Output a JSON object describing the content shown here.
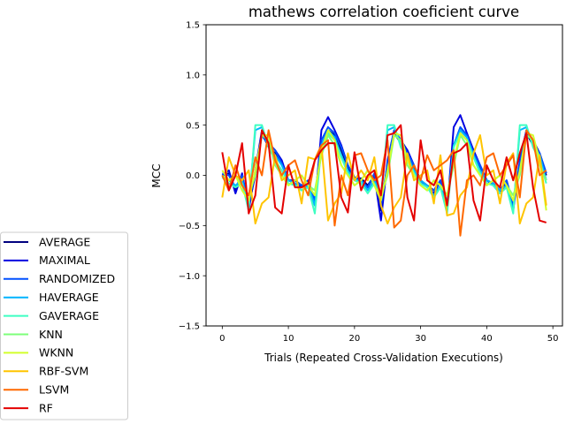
{
  "chart_data": {
    "type": "line",
    "title": "mathews correlation coeficient curve",
    "xlabel": "Trials (Repeated Cross-Validation Executions)",
    "ylabel": "MCC",
    "xlim": [
      -2.45,
      51.45
    ],
    "ylim": [
      -1.5,
      1.5
    ],
    "xticks": [
      0,
      10,
      20,
      30,
      40,
      50
    ],
    "yticks": [
      -1.5,
      -1.0,
      -0.5,
      0.0,
      0.5,
      1.0,
      1.5
    ],
    "xtick_labels": [
      "0",
      "10",
      "20",
      "30",
      "40",
      "50"
    ],
    "ytick_labels": [
      "−1.5",
      "−1.0",
      "−0.5",
      "0.0",
      "0.5",
      "1.0",
      "1.5"
    ],
    "grid": false,
    "legend_position": "outside-lower-left",
    "x": [
      0,
      1,
      2,
      3,
      4,
      5,
      6,
      7,
      8,
      9,
      10,
      11,
      12,
      13,
      14,
      15,
      16,
      17,
      18,
      19,
      20,
      21,
      22,
      23,
      24,
      25,
      26,
      27,
      28,
      29,
      30,
      31,
      32,
      33,
      34,
      35,
      36,
      37,
      38,
      39,
      40,
      41,
      42,
      43,
      44,
      45,
      46,
      47,
      48,
      49
    ],
    "series": [
      {
        "name": "AVERAGE",
        "color": "#00007f",
        "values": [
          0.0,
          0.02,
          -0.15,
          0.0,
          -0.3,
          0.0,
          0.42,
          0.28,
          0.22,
          0.12,
          -0.05,
          -0.05,
          -0.1,
          -0.05,
          -0.25,
          0.3,
          0.45,
          0.4,
          0.25,
          0.08,
          -0.03,
          -0.03,
          -0.1,
          0.0,
          -0.35,
          0.1,
          0.42,
          0.32,
          0.2,
          0.08,
          -0.05,
          -0.1,
          -0.15,
          -0.05,
          -0.3,
          0.3,
          0.45,
          0.38,
          0.2,
          0.08,
          -0.05,
          -0.08,
          -0.15,
          -0.05,
          -0.3,
          0.1,
          0.42,
          0.3,
          0.2,
          0.0
        ]
      },
      {
        "name": "MAXIMAL",
        "color": "#0000e0",
        "values": [
          0.0,
          0.05,
          -0.18,
          0.02,
          -0.35,
          0.05,
          0.45,
          0.32,
          0.25,
          0.15,
          -0.05,
          -0.08,
          -0.12,
          -0.08,
          -0.3,
          0.45,
          0.58,
          0.45,
          0.3,
          0.1,
          -0.02,
          -0.05,
          -0.12,
          0.0,
          -0.45,
          0.15,
          0.45,
          0.35,
          0.25,
          0.1,
          -0.05,
          -0.12,
          -0.18,
          -0.05,
          -0.35,
          0.48,
          0.6,
          0.42,
          0.25,
          0.1,
          -0.05,
          -0.1,
          -0.18,
          -0.08,
          -0.35,
          0.15,
          0.45,
          0.35,
          0.22,
          0.02
        ]
      },
      {
        "name": "RANDOMIZED",
        "color": "#0050ff",
        "values": [
          0.02,
          0.0,
          -0.12,
          0.0,
          -0.28,
          0.02,
          0.4,
          0.3,
          0.25,
          0.12,
          -0.05,
          -0.05,
          -0.1,
          -0.05,
          -0.25,
          0.35,
          0.48,
          0.42,
          0.28,
          0.1,
          -0.02,
          -0.05,
          -0.12,
          0.02,
          -0.3,
          0.12,
          0.45,
          0.35,
          0.22,
          0.1,
          -0.05,
          -0.12,
          -0.15,
          -0.05,
          -0.28,
          0.3,
          0.48,
          0.4,
          0.22,
          0.1,
          -0.05,
          -0.08,
          -0.15,
          -0.05,
          -0.3,
          0.12,
          0.45,
          0.32,
          0.22,
          0.02
        ]
      },
      {
        "name": "HAVERAGE",
        "color": "#00b4ff",
        "values": [
          0.0,
          -0.05,
          -0.1,
          -0.05,
          -0.3,
          0.45,
          0.48,
          0.3,
          0.2,
          0.1,
          -0.05,
          -0.08,
          -0.15,
          -0.1,
          -0.3,
          0.3,
          0.45,
          0.38,
          0.2,
          0.05,
          -0.05,
          -0.05,
          -0.15,
          -0.05,
          -0.2,
          0.45,
          0.48,
          0.3,
          0.2,
          0.05,
          -0.05,
          -0.1,
          -0.2,
          -0.1,
          -0.35,
          0.3,
          0.45,
          0.38,
          0.2,
          0.05,
          -0.05,
          -0.08,
          -0.15,
          -0.1,
          -0.35,
          0.45,
          0.48,
          0.3,
          0.2,
          -0.05
        ]
      },
      {
        "name": "GAVERAGE",
        "color": "#3dffc2",
        "values": [
          -0.02,
          -0.08,
          -0.12,
          -0.08,
          -0.35,
          0.5,
          0.5,
          0.28,
          0.15,
          0.05,
          -0.08,
          -0.1,
          -0.15,
          -0.12,
          -0.38,
          0.28,
          0.42,
          0.35,
          0.18,
          0.02,
          -0.05,
          -0.08,
          -0.18,
          -0.08,
          -0.25,
          0.5,
          0.5,
          0.28,
          0.18,
          0.02,
          -0.08,
          -0.12,
          -0.22,
          -0.12,
          -0.38,
          0.28,
          0.42,
          0.35,
          0.18,
          0.02,
          -0.08,
          -0.1,
          -0.18,
          -0.12,
          -0.38,
          0.5,
          0.5,
          0.28,
          0.15,
          -0.08
        ]
      },
      {
        "name": "KNN",
        "color": "#7dff7a",
        "values": [
          0.0,
          -0.05,
          0.0,
          -0.1,
          -0.2,
          0.0,
          0.4,
          0.35,
          0.1,
          0.0,
          -0.1,
          -0.05,
          0.0,
          -0.1,
          -0.15,
          0.2,
          0.4,
          0.3,
          0.1,
          0.0,
          -0.1,
          -0.05,
          0.05,
          -0.1,
          -0.2,
          0.0,
          0.4,
          0.35,
          0.1,
          0.0,
          -0.1,
          -0.15,
          -0.05,
          -0.1,
          -0.2,
          0.1,
          0.4,
          0.3,
          0.1,
          0.0,
          -0.1,
          -0.05,
          0.0,
          -0.1,
          -0.2,
          0.0,
          0.4,
          0.35,
          0.1,
          -0.05
        ]
      },
      {
        "name": "WKNN",
        "color": "#d2ff2b",
        "values": [
          0.05,
          -0.05,
          0.0,
          -0.15,
          -0.25,
          0.05,
          0.4,
          0.4,
          0.15,
          0.0,
          -0.1,
          -0.05,
          0.0,
          -0.1,
          -0.2,
          0.25,
          0.45,
          0.35,
          0.1,
          0.0,
          -0.1,
          -0.05,
          0.05,
          -0.1,
          -0.25,
          0.05,
          0.42,
          0.4,
          0.15,
          0.0,
          -0.1,
          -0.15,
          -0.05,
          -0.1,
          -0.2,
          0.15,
          0.42,
          0.35,
          0.1,
          0.0,
          -0.1,
          -0.05,
          0.0,
          -0.1,
          -0.25,
          0.05,
          0.42,
          0.4,
          0.15,
          -0.35
        ]
      },
      {
        "name": "RBF-SVM",
        "color": "#ffc400",
        "values": [
          -0.22,
          0.18,
          0.0,
          -0.05,
          0.05,
          -0.48,
          -0.28,
          -0.22,
          0.2,
          -0.05,
          0.0,
          0.05,
          -0.28,
          0.18,
          0.16,
          0.3,
          -0.45,
          -0.28,
          -0.18,
          0.22,
          -0.05,
          0.05,
          -0.05,
          0.18,
          -0.3,
          -0.48,
          -0.32,
          -0.22,
          0.22,
          -0.05,
          0.0,
          0.05,
          -0.28,
          0.2,
          -0.4,
          -0.38,
          -0.2,
          -0.12,
          0.22,
          0.4,
          0.0,
          0.05,
          -0.28,
          0.12,
          0.22,
          -0.48,
          -0.28,
          -0.22,
          0.2,
          -0.3
        ]
      },
      {
        "name": "LSVM",
        "color": "#ff6800",
        "values": [
          0.0,
          -0.15,
          0.1,
          -0.1,
          -0.2,
          0.18,
          0.0,
          0.45,
          0.15,
          0.0,
          0.1,
          0.15,
          -0.05,
          -0.2,
          0.15,
          0.3,
          0.35,
          -0.5,
          0.0,
          -0.2,
          0.2,
          0.22,
          0.05,
          -0.05,
          0.0,
          0.35,
          -0.52,
          -0.45,
          0.0,
          0.1,
          -0.05,
          0.2,
          0.05,
          0.1,
          0.15,
          0.25,
          -0.6,
          -0.05,
          0.0,
          -0.1,
          0.18,
          0.22,
          0.0,
          0.1,
          0.2,
          -0.22,
          0.45,
          0.35,
          0.0,
          0.05
        ]
      },
      {
        "name": "RF",
        "color": "#e40000",
        "values": [
          0.23,
          -0.15,
          0.0,
          0.32,
          -0.38,
          -0.2,
          0.45,
          0.32,
          -0.32,
          -0.38,
          0.1,
          -0.12,
          -0.12,
          -0.08,
          0.15,
          0.25,
          0.32,
          0.32,
          -0.22,
          -0.37,
          0.23,
          -0.15,
          0.0,
          0.05,
          -0.2,
          0.4,
          0.42,
          0.5,
          -0.22,
          -0.45,
          0.35,
          -0.05,
          -0.1,
          0.05,
          -0.3,
          0.22,
          0.25,
          0.32,
          -0.25,
          -0.45,
          0.1,
          -0.05,
          -0.12,
          0.18,
          -0.05,
          0.22,
          0.42,
          -0.12,
          -0.45,
          -0.47
        ]
      }
    ]
  }
}
